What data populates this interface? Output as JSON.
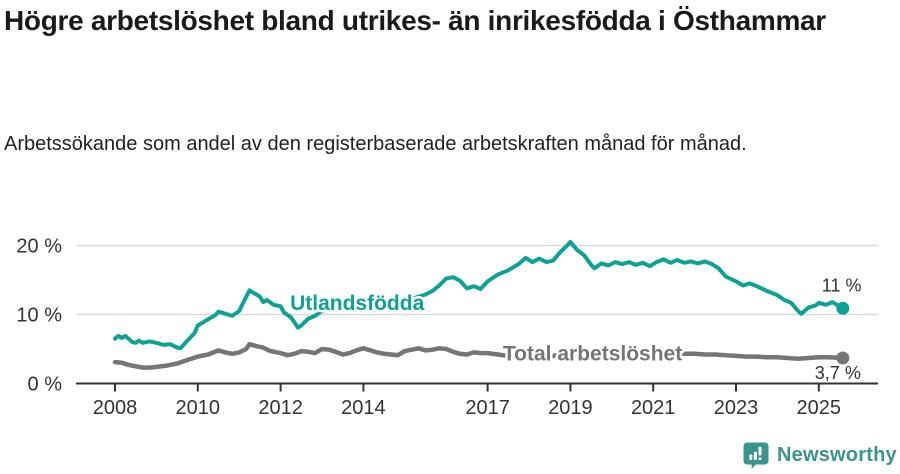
{
  "header": {
    "title": "Högre arbetslöshet bland utrikes- än inrikesfödda i Östhammar",
    "subtitle": "Arbetssökande som andel av den registerbaserade arbetskraften månad för månad."
  },
  "chart_data": {
    "type": "line",
    "unit": "%",
    "grid": true,
    "legend_position": "inline-labels",
    "ylim": [
      0,
      22
    ],
    "xlim": [
      2008,
      2025.7
    ],
    "y_ticks": [
      {
        "value": 0,
        "label": "0 %"
      },
      {
        "value": 10,
        "label": "10 %"
      },
      {
        "value": 20,
        "label": "20 %"
      }
    ],
    "x_ticks": [
      {
        "year": 2008,
        "label": "2008"
      },
      {
        "year": 2010,
        "label": "2010"
      },
      {
        "year": 2012,
        "label": "2012"
      },
      {
        "year": 2014,
        "label": "2014"
      },
      {
        "year": 2017,
        "label": "2017"
      },
      {
        "year": 2019,
        "label": "2019"
      },
      {
        "year": 2021,
        "label": "2021"
      },
      {
        "year": 2023,
        "label": "2023"
      },
      {
        "year": 2025,
        "label": "2025"
      }
    ],
    "series": [
      {
        "name": "Utlandsfödda",
        "color": "#0ca295",
        "end_label": "11 %",
        "name_label_at": [
          2012.23,
          10.65
        ],
        "points": [
          [
            2008.0,
            6.5
          ],
          [
            2008.08,
            6.9
          ],
          [
            2008.17,
            6.6
          ],
          [
            2008.25,
            6.9
          ],
          [
            2008.42,
            6.0
          ],
          [
            2008.5,
            5.9
          ],
          [
            2008.58,
            6.2
          ],
          [
            2008.67,
            5.9
          ],
          [
            2008.83,
            6.1
          ],
          [
            2009.0,
            5.9
          ],
          [
            2009.17,
            5.6
          ],
          [
            2009.33,
            5.7
          ],
          [
            2009.5,
            5.2
          ],
          [
            2009.58,
            5.1
          ],
          [
            2009.75,
            6.2
          ],
          [
            2009.92,
            7.3
          ],
          [
            2010.0,
            8.4
          ],
          [
            2010.25,
            9.3
          ],
          [
            2010.42,
            9.9
          ],
          [
            2010.5,
            10.4
          ],
          [
            2010.67,
            10.1
          ],
          [
            2010.83,
            9.8
          ],
          [
            2011.0,
            10.5
          ],
          [
            2011.08,
            11.5
          ],
          [
            2011.25,
            13.5
          ],
          [
            2011.33,
            13.2
          ],
          [
            2011.5,
            12.6
          ],
          [
            2011.58,
            11.8
          ],
          [
            2011.67,
            12.1
          ],
          [
            2011.83,
            11.4
          ],
          [
            2012.0,
            11.2
          ],
          [
            2012.08,
            10.3
          ],
          [
            2012.25,
            9.6
          ],
          [
            2012.42,
            8.1
          ],
          [
            2012.5,
            8.4
          ],
          [
            2012.67,
            9.4
          ],
          [
            2012.83,
            9.8
          ],
          [
            2013.0,
            10.5
          ],
          [
            2013.25,
            10.9
          ],
          [
            2013.5,
            11.2
          ],
          [
            2013.75,
            11.0
          ],
          [
            2014.0,
            11.2
          ],
          [
            2014.25,
            10.9
          ],
          [
            2014.5,
            11.3
          ],
          [
            2014.75,
            11.7
          ],
          [
            2015.0,
            12.0
          ],
          [
            2015.25,
            12.4
          ],
          [
            2015.5,
            12.9
          ],
          [
            2015.67,
            13.4
          ],
          [
            2015.83,
            14.2
          ],
          [
            2016.0,
            15.2
          ],
          [
            2016.17,
            15.4
          ],
          [
            2016.33,
            14.9
          ],
          [
            2016.5,
            13.8
          ],
          [
            2016.67,
            14.1
          ],
          [
            2016.83,
            13.7
          ],
          [
            2017.0,
            14.8
          ],
          [
            2017.25,
            15.8
          ],
          [
            2017.5,
            16.4
          ],
          [
            2017.75,
            17.3
          ],
          [
            2017.92,
            18.2
          ],
          [
            2018.08,
            17.6
          ],
          [
            2018.25,
            18.1
          ],
          [
            2018.42,
            17.6
          ],
          [
            2018.58,
            17.8
          ],
          [
            2018.75,
            19.0
          ],
          [
            2018.92,
            20.0
          ],
          [
            2019.0,
            20.5
          ],
          [
            2019.17,
            19.3
          ],
          [
            2019.33,
            18.6
          ],
          [
            2019.5,
            17.2
          ],
          [
            2019.58,
            16.7
          ],
          [
            2019.75,
            17.4
          ],
          [
            2019.92,
            17.1
          ],
          [
            2020.08,
            17.6
          ],
          [
            2020.25,
            17.3
          ],
          [
            2020.42,
            17.6
          ],
          [
            2020.58,
            17.2
          ],
          [
            2020.75,
            17.5
          ],
          [
            2020.92,
            17.0
          ],
          [
            2021.08,
            17.6
          ],
          [
            2021.25,
            18.0
          ],
          [
            2021.42,
            17.5
          ],
          [
            2021.58,
            17.9
          ],
          [
            2021.75,
            17.5
          ],
          [
            2021.92,
            17.7
          ],
          [
            2022.08,
            17.4
          ],
          [
            2022.25,
            17.7
          ],
          [
            2022.42,
            17.3
          ],
          [
            2022.58,
            16.7
          ],
          [
            2022.75,
            15.5
          ],
          [
            2023.0,
            14.8
          ],
          [
            2023.17,
            14.2
          ],
          [
            2023.33,
            14.5
          ],
          [
            2023.5,
            14.1
          ],
          [
            2023.75,
            13.4
          ],
          [
            2024.0,
            12.8
          ],
          [
            2024.17,
            12.1
          ],
          [
            2024.33,
            11.7
          ],
          [
            2024.5,
            10.5
          ],
          [
            2024.58,
            10.1
          ],
          [
            2024.75,
            11.0
          ],
          [
            2024.92,
            11.3
          ],
          [
            2025.0,
            11.7
          ],
          [
            2025.17,
            11.4
          ],
          [
            2025.33,
            11.8
          ],
          [
            2025.58,
            10.9
          ]
        ]
      },
      {
        "name": "Total arbetslöshet",
        "color": "#757578",
        "end_label": "3,7 %",
        "name_label_at": [
          2017.37,
          3.35
        ],
        "points": [
          [
            2008.0,
            3.1
          ],
          [
            2008.17,
            3.0
          ],
          [
            2008.33,
            2.7
          ],
          [
            2008.5,
            2.5
          ],
          [
            2008.67,
            2.3
          ],
          [
            2008.83,
            2.3
          ],
          [
            2009.0,
            2.4
          ],
          [
            2009.25,
            2.6
          ],
          [
            2009.5,
            2.9
          ],
          [
            2009.75,
            3.4
          ],
          [
            2010.0,
            3.9
          ],
          [
            2010.25,
            4.2
          ],
          [
            2010.5,
            4.8
          ],
          [
            2010.67,
            4.5
          ],
          [
            2010.83,
            4.3
          ],
          [
            2011.0,
            4.5
          ],
          [
            2011.17,
            5.0
          ],
          [
            2011.25,
            5.7
          ],
          [
            2011.42,
            5.4
          ],
          [
            2011.58,
            5.2
          ],
          [
            2011.75,
            4.7
          ],
          [
            2012.0,
            4.4
          ],
          [
            2012.17,
            4.1
          ],
          [
            2012.33,
            4.3
          ],
          [
            2012.5,
            4.7
          ],
          [
            2012.67,
            4.6
          ],
          [
            2012.83,
            4.4
          ],
          [
            2013.0,
            5.0
          ],
          [
            2013.17,
            4.9
          ],
          [
            2013.33,
            4.6
          ],
          [
            2013.5,
            4.2
          ],
          [
            2013.67,
            4.4
          ],
          [
            2013.83,
            4.8
          ],
          [
            2014.0,
            5.1
          ],
          [
            2014.17,
            4.8
          ],
          [
            2014.33,
            4.5
          ],
          [
            2014.5,
            4.3
          ],
          [
            2014.67,
            4.2
          ],
          [
            2014.83,
            4.1
          ],
          [
            2015.0,
            4.7
          ],
          [
            2015.17,
            4.9
          ],
          [
            2015.33,
            5.1
          ],
          [
            2015.5,
            4.8
          ],
          [
            2015.67,
            4.9
          ],
          [
            2015.83,
            5.1
          ],
          [
            2016.0,
            5.0
          ],
          [
            2016.17,
            4.6
          ],
          [
            2016.33,
            4.3
          ],
          [
            2016.5,
            4.2
          ],
          [
            2016.67,
            4.5
          ],
          [
            2016.83,
            4.4
          ],
          [
            2017.0,
            4.4
          ],
          [
            2017.25,
            4.2
          ],
          [
            2017.5,
            4.0
          ],
          [
            2017.75,
            4.3
          ],
          [
            2018.0,
            4.4
          ],
          [
            2018.25,
            4.1
          ],
          [
            2018.5,
            3.9
          ],
          [
            2018.75,
            4.2
          ],
          [
            2019.0,
            4.3
          ],
          [
            2019.25,
            4.2
          ],
          [
            2019.5,
            4.0
          ],
          [
            2019.75,
            4.2
          ],
          [
            2020.0,
            4.3
          ],
          [
            2020.25,
            4.5
          ],
          [
            2020.5,
            4.4
          ],
          [
            2020.75,
            4.3
          ],
          [
            2021.0,
            4.4
          ],
          [
            2021.25,
            4.3
          ],
          [
            2021.5,
            4.2
          ],
          [
            2021.75,
            4.3
          ],
          [
            2022.0,
            4.3
          ],
          [
            2022.25,
            4.2
          ],
          [
            2022.5,
            4.2
          ],
          [
            2022.75,
            4.1
          ],
          [
            2023.0,
            4.0
          ],
          [
            2023.25,
            3.9
          ],
          [
            2023.5,
            3.9
          ],
          [
            2023.75,
            3.8
          ],
          [
            2024.0,
            3.8
          ],
          [
            2024.25,
            3.7
          ],
          [
            2024.5,
            3.6
          ],
          [
            2024.75,
            3.7
          ],
          [
            2025.0,
            3.8
          ],
          [
            2025.25,
            3.8
          ],
          [
            2025.58,
            3.7
          ]
        ]
      }
    ],
    "colors": {
      "grid": "#d9d9d9",
      "axis": "#333333",
      "tick_label": "#333333",
      "value_label": "#333333",
      "brand": "#39948c"
    }
  },
  "footer": {
    "brand": "Newsworthy"
  }
}
